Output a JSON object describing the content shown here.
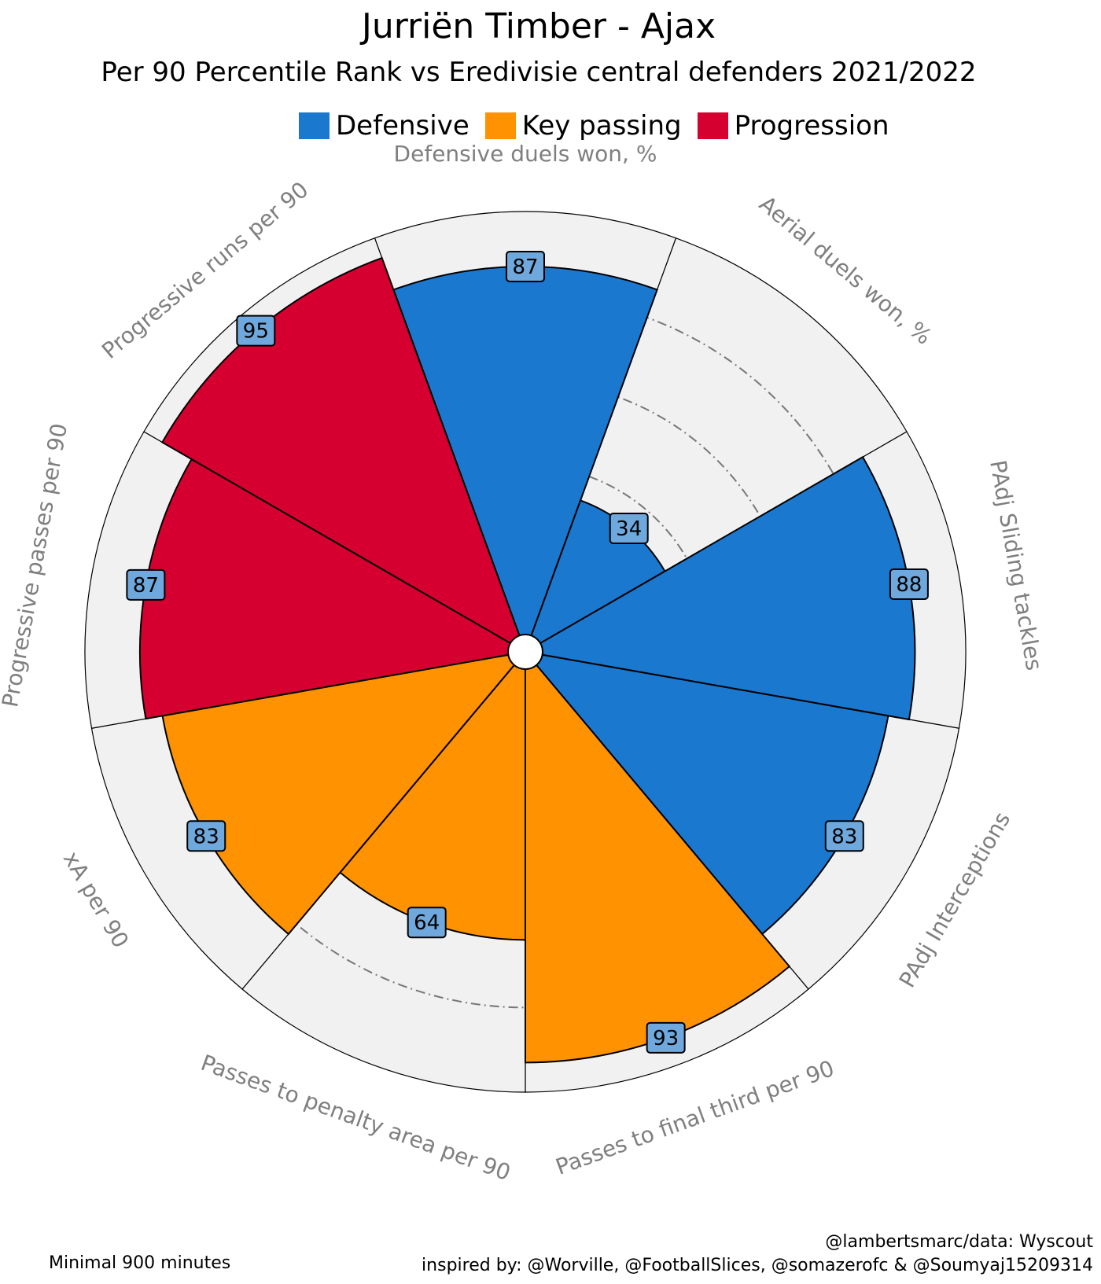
{
  "chart_data": {
    "type": "pizza",
    "title": "Jurriën Timber -  Ajax",
    "subtitle": "Per 90 Percentile Rank vs Eredivisie central defenders 2021/2022",
    "legend": [
      {
        "name": "Defensive",
        "color": "#1b78cf"
      },
      {
        "name": "Key passing",
        "color": "#ff9200"
      },
      {
        "name": "Progression",
        "color": "#d60030"
      }
    ],
    "rlim": [
      0,
      100
    ],
    "categories": [
      "Defensive duels won, %",
      "Aerial duels won, %",
      "PAdj Sliding tackles",
      "PAdj Interceptions",
      "Passes to final third per 90",
      "Passes to penalty area per 90",
      "xA per 90",
      "Progressive passes per 90",
      "Progressive runs per 90"
    ],
    "values": [
      87,
      34,
      88,
      83,
      93,
      64,
      83,
      87,
      95
    ],
    "groups": [
      "Defensive",
      "Defensive",
      "Defensive",
      "Defensive",
      "Key passing",
      "Key passing",
      "Key passing",
      "Progression",
      "Progression"
    ],
    "label_color": "#7f7f7f",
    "background_color": "#f1f1f1",
    "value_box_color": "#6ea8dc"
  },
  "footer": {
    "left": "Minimal 900 minutes",
    "right_line1": "@lambertsmarc/data: Wyscout",
    "right_line2": "inspired by: @Worville, @FootballSlices, @somazerofc & @Soumyaj15209314"
  }
}
